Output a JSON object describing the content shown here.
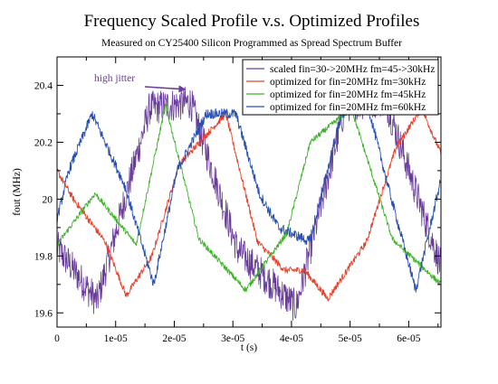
{
  "chart_data": {
    "type": "line",
    "title": "Frequency Scaled Profile v.s. Optimized Profiles",
    "subtitle": "Measured on CY25400 Silicon Programmed as Spread Spectrum Buffer",
    "xlabel": "t (s)",
    "ylabel": "fout (MHz)",
    "xlim": [
      0,
      6.55e-05
    ],
    "ylim": [
      19.55,
      20.5
    ],
    "x_ticks": [
      0,
      1e-05,
      2e-05,
      3e-05,
      4e-05,
      5e-05,
      6e-05
    ],
    "x_tick_labels": [
      "0",
      "1e-05",
      "2e-05",
      "3e-05",
      "4e-05",
      "5e-05",
      "6e-05"
    ],
    "y_ticks": [
      19.6,
      19.8,
      20,
      20.2,
      20.4
    ],
    "y_tick_labels": [
      "19.6",
      "19.8",
      "20",
      "20.2",
      "20.4"
    ],
    "grid": false,
    "legend_position": "top-right",
    "annotation": {
      "text": "high jitter",
      "x": 2.2e-05,
      "y": 20.38,
      "color": "#6a3d9a"
    },
    "series": [
      {
        "name": "scaled fin=30->20MHz fm=45->30kHz",
        "color": "#6a3d9a",
        "noise": 0.06,
        "x": [
          0,
          6.8e-06,
          1.58e-05,
          2.28e-05,
          3.08e-05,
          4.08e-05,
          4.92e-05,
          5.6e-05,
          6.55e-05
        ],
        "y": [
          19.83,
          19.64,
          20.32,
          20.34,
          19.82,
          19.62,
          20.33,
          20.35,
          19.76
        ]
      },
      {
        "name": "optimized for fin=20MHz fm=30kHz",
        "color": "#e8402a",
        "noise": 0.012,
        "x": [
          0,
          2.8e-06,
          8.2e-06,
          1.18e-05,
          1.62e-05,
          2.08e-05,
          2.52e-05,
          2.88e-05,
          3.42e-05,
          3.88e-05,
          4.22e-05,
          4.62e-05,
          5.28e-05,
          5.78e-05,
          6.22e-05,
          6.55e-05
        ],
        "y": [
          20.1,
          20.0,
          19.85,
          19.66,
          19.8,
          20.12,
          20.22,
          20.3,
          19.85,
          19.75,
          19.75,
          19.65,
          19.85,
          20.18,
          20.32,
          20.16
        ],
        "samples": 900
      },
      {
        "name": "optimized for fin=20MHz fm=45kHz",
        "color": "#3cb428",
        "noise": 0.01,
        "x": [
          0,
          6.5e-06,
          1.35e-05,
          1.85e-05,
          2.42e-05,
          3.22e-05,
          3.92e-05,
          4.32e-05,
          5.02e-05,
          5.72e-05,
          6.55e-05
        ],
        "y": [
          19.84,
          20.02,
          19.84,
          20.33,
          19.86,
          19.68,
          19.88,
          20.2,
          20.32,
          19.86,
          19.7
        ]
      },
      {
        "name": "optimized for fin=20MHz fm=60kHz",
        "color": "#2850b4",
        "noise": 0.018,
        "x": [
          0,
          2e-06,
          6e-06,
          1.15e-05,
          1.65e-05,
          2.05e-05,
          2.55e-05,
          3.05e-05,
          3.45e-05,
          3.78e-05,
          4.32e-05,
          4.85e-05,
          5.3e-05,
          5.68e-05,
          6.12e-05,
          6.55e-05
        ],
        "y": [
          19.93,
          20.1,
          20.3,
          20.05,
          19.7,
          20.1,
          20.3,
          20.3,
          20.02,
          19.9,
          19.85,
          20.3,
          20.33,
          20.02,
          19.68,
          20.07
        ]
      }
    ]
  }
}
